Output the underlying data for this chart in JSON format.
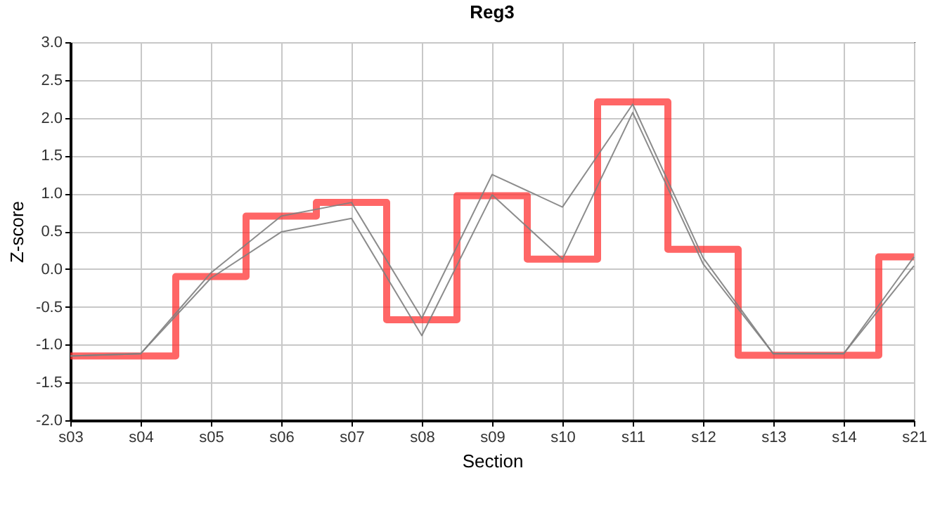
{
  "chart_data": {
    "type": "line",
    "title": "Reg3",
    "xlabel": "Section",
    "ylabel": "Z-score",
    "categories": [
      "s03",
      "s04",
      "s05",
      "s06",
      "s07",
      "s08",
      "s09",
      "s10",
      "s11",
      "s12",
      "s13",
      "s14",
      "s21"
    ],
    "series": [
      {
        "type": "step",
        "color": "#ff3333",
        "values": [
          -1.15,
          -1.15,
          -0.1,
          0.7,
          0.88,
          -0.67,
          0.97,
          0.13,
          2.21,
          0.26,
          -1.14,
          -1.14,
          0.16
        ]
      },
      {
        "color": "#808080",
        "values": [
          -1.15,
          -1.12,
          -0.05,
          0.7,
          0.88,
          -0.65,
          1.25,
          0.82,
          2.18,
          0.15,
          -1.12,
          -1.12,
          0.16
        ]
      },
      {
        "color": "#808080",
        "values": [
          -1.15,
          -1.12,
          -0.12,
          0.49,
          0.67,
          -0.88,
          0.98,
          0.13,
          2.07,
          0.07,
          -1.12,
          -1.12,
          0.04
        ]
      }
    ],
    "ylim": [
      -2,
      3
    ],
    "yticks": [
      {
        "value": -2,
        "label": "-2.0"
      },
      {
        "value": -1.5,
        "label": "-1.5"
      },
      {
        "value": -1,
        "label": "-1.0"
      },
      {
        "value": -0.5,
        "label": "-0.5"
      },
      {
        "value": 0,
        "label": "0.0"
      },
      {
        "value": 0.5,
        "label": "0.5"
      },
      {
        "value": 1,
        "label": "1.0"
      },
      {
        "value": 1.5,
        "label": "1.5"
      },
      {
        "value": 2,
        "label": "2.0"
      },
      {
        "value": 2.5,
        "label": "2.5"
      },
      {
        "value": 3,
        "label": "3.0"
      }
    ],
    "grid": true,
    "marker": "none",
    "line_style": "solid"
  }
}
